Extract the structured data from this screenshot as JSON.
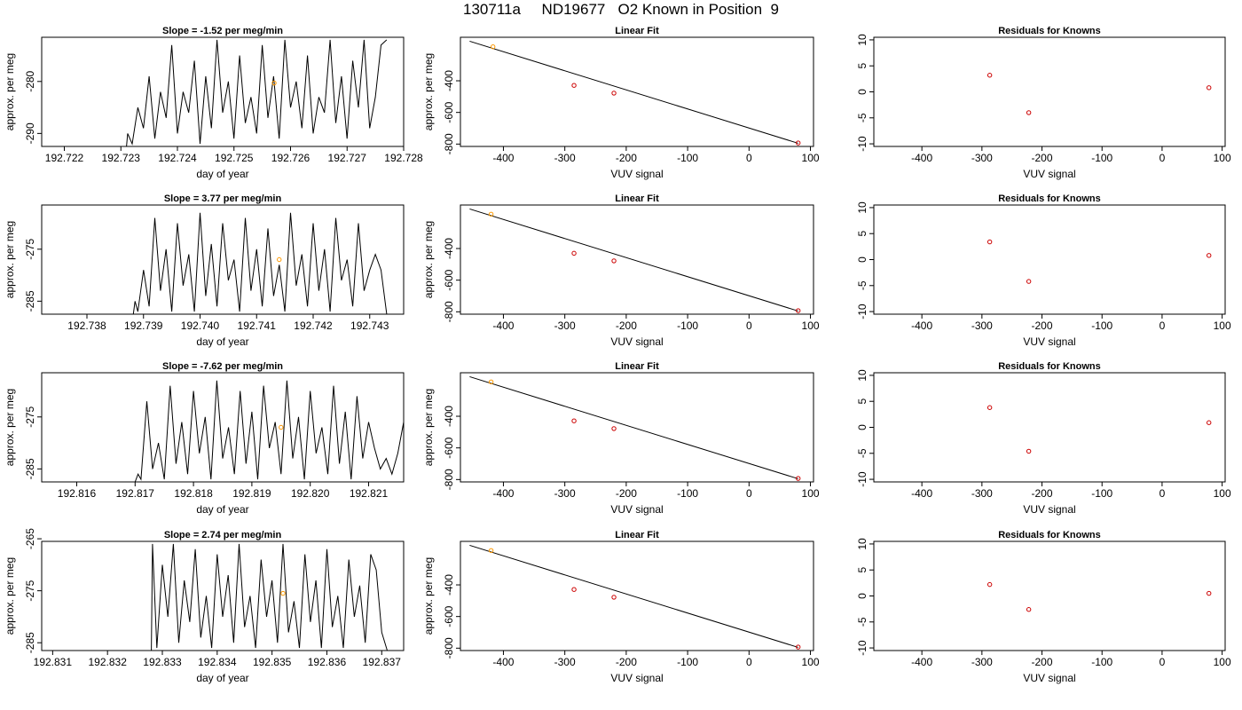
{
  "title": "130711a     ND19677   O2 Known in Position  9",
  "colors": {
    "line": "#000000",
    "known_point": "#cc0000",
    "unknown_point": "#ff9900"
  },
  "chart_data": [
    {
      "type": "line",
      "title": "Slope =  -1.52  per meg/min",
      "xlabel": "day of year",
      "ylabel": "approx. per meg",
      "xlim": [
        192.7216,
        192.728
      ],
      "ylim": [
        -292.5,
        -271.5
      ],
      "xticks": [
        "192.722",
        "192.723",
        "192.724",
        "192.725",
        "192.726",
        "192.727",
        "192.728"
      ],
      "yticks": [
        "-280",
        "-290"
      ],
      "marker": {
        "x": 192.72571,
        "y": -280.3
      },
      "series": [
        {
          "x": [
            192.7216,
            192.7231,
            192.72312,
            192.7232,
            192.7233,
            192.7234,
            192.7235,
            192.7236,
            192.7237,
            192.7238,
            192.7239,
            192.724,
            192.7241,
            192.7242,
            192.7243,
            192.7244,
            192.7245,
            192.7246,
            192.7247,
            192.7248,
            192.7249,
            192.725,
            192.7251,
            192.7252,
            192.7253,
            192.7254,
            192.7255,
            192.7256,
            192.7257,
            192.7258,
            192.7259,
            192.726,
            192.7261,
            192.7262,
            192.7263,
            192.7264,
            192.7265,
            192.7266,
            192.7267,
            192.7268,
            192.7269,
            192.727,
            192.7271,
            192.7272,
            192.7273,
            192.7274,
            192.7275,
            192.7276,
            192.7277
          ],
          "y": [
            -292.5,
            -292.5,
            -290,
            -292,
            -285,
            -289,
            -279,
            -291,
            -282,
            -287,
            -273,
            -290,
            -282,
            -286,
            -276,
            -292,
            -279,
            -289,
            -272,
            -286,
            -280,
            -291,
            -275,
            -288,
            -283,
            -290,
            -273,
            -287,
            -279,
            -291,
            -272,
            -285,
            -280,
            -289,
            -275,
            -290,
            -283,
            -286,
            -272,
            -288,
            -279,
            -291,
            -276,
            -285,
            -272,
            -289,
            -283,
            -273,
            -272
          ]
        }
      ]
    },
    {
      "type": "scatter",
      "title": "Linear Fit",
      "xlabel": "VUV signal",
      "ylabel": "approx. per meg",
      "xlim": [
        -470,
        105
      ],
      "ylim": [
        -815,
        -125
      ],
      "xticks": [
        "-400",
        "-300",
        "-200",
        "-100",
        "0",
        "100"
      ],
      "yticks": [
        "-400",
        "-600",
        "-800"
      ],
      "fit_line": {
        "x": [
          -455,
          80
        ],
        "y": [
          -150,
          -795
        ]
      },
      "knowns": {
        "x": [
          -285,
          -220,
          80
        ],
        "y": [
          -429,
          -478,
          -793
        ]
      },
      "unknown": {
        "x": -417,
        "y": -185
      }
    },
    {
      "type": "scatter",
      "title": "Residuals for Knowns",
      "xlabel": "VUV signal",
      "ylabel": "",
      "xlim": [
        -480,
        105
      ],
      "ylim": [
        -10.5,
        10.5
      ],
      "xticks": [
        "-400",
        "-300",
        "-200",
        "-100",
        "0",
        "100"
      ],
      "yticks": [
        "10",
        "5",
        "0",
        "-5",
        "-10"
      ],
      "knowns": {
        "x": [
          -287,
          -222,
          78
        ],
        "y": [
          3.2,
          -4.0,
          0.8
        ]
      }
    },
    {
      "type": "line",
      "title": "Slope =  3.77  per meg/min",
      "xlabel": "day of year",
      "ylabel": "approx. per meg",
      "xlim": [
        192.7372,
        192.7436
      ],
      "ylim": [
        -287.5,
        -266.5
      ],
      "xticks": [
        "192.738",
        "192.739",
        "192.740",
        "192.741",
        "192.742",
        "192.743"
      ],
      "yticks": [
        "-275",
        "-285"
      ],
      "marker": {
        "x": 192.7414,
        "y": -277
      },
      "series": [
        {
          "x": [
            192.7372,
            192.73882,
            192.73885,
            192.7389,
            192.739,
            192.7391,
            192.7392,
            192.7393,
            192.7394,
            192.7395,
            192.7396,
            192.7397,
            192.7398,
            192.7399,
            192.74,
            192.7401,
            192.7402,
            192.7403,
            192.7404,
            192.7405,
            192.7406,
            192.7407,
            192.7408,
            192.7409,
            192.741,
            192.7411,
            192.7412,
            192.7413,
            192.7414,
            192.7415,
            192.7416,
            192.7417,
            192.7418,
            192.7419,
            192.742,
            192.7421,
            192.7422,
            192.7423,
            192.7424,
            192.7425,
            192.7426,
            192.7427,
            192.7428,
            192.7429,
            192.743,
            192.7431,
            192.7432,
            192.7433
          ],
          "y": [
            -287.5,
            -287.5,
            -285,
            -287,
            -279,
            -286,
            -269,
            -283,
            -275,
            -287,
            -270,
            -282,
            -276,
            -287,
            -268,
            -284,
            -274,
            -286,
            -270,
            -281,
            -277,
            -287,
            -269,
            -283,
            -275,
            -286,
            -271,
            -284,
            -278,
            -287,
            -268,
            -282,
            -276,
            -286,
            -270,
            -283,
            -275,
            -287,
            -269,
            -281,
            -277,
            -286,
            -270,
            -283,
            -279,
            -276,
            -279,
            -287.5
          ]
        }
      ]
    },
    {
      "type": "scatter",
      "title": "Linear Fit",
      "xlabel": "VUV signal",
      "ylabel": "approx. per meg",
      "xlim": [
        -470,
        105
      ],
      "ylim": [
        -815,
        -125
      ],
      "xticks": [
        "-400",
        "-300",
        "-200",
        "-100",
        "0",
        "100"
      ],
      "yticks": [
        "-400",
        "-600",
        "-800"
      ],
      "fit_line": {
        "x": [
          -455,
          80
        ],
        "y": [
          -150,
          -795
        ]
      },
      "knowns": {
        "x": [
          -285,
          -220,
          80
        ],
        "y": [
          -430,
          -478,
          -793
        ]
      },
      "unknown": {
        "x": -420,
        "y": -183
      }
    },
    {
      "type": "scatter",
      "title": "Residuals for Knowns",
      "xlabel": "VUV signal",
      "ylabel": "",
      "xlim": [
        -480,
        105
      ],
      "ylim": [
        -10.5,
        10.5
      ],
      "xticks": [
        "-400",
        "-300",
        "-200",
        "-100",
        "0",
        "100"
      ],
      "yticks": [
        "10",
        "5",
        "0",
        "-5",
        "-10"
      ],
      "knowns": {
        "x": [
          -287,
          -222,
          78
        ],
        "y": [
          3.4,
          -4.2,
          0.8
        ]
      }
    },
    {
      "type": "line",
      "title": "Slope =  -7.62  per meg/min",
      "xlabel": "day of year",
      "ylabel": "approx. per meg",
      "xlim": [
        192.8154,
        192.8216
      ],
      "ylim": [
        -287.5,
        -266.5
      ],
      "xticks": [
        "192.816",
        "192.817",
        "192.818",
        "192.819",
        "192.820",
        "192.821"
      ],
      "yticks": [
        "-275",
        "-285"
      ],
      "marker": {
        "x": 192.8195,
        "y": -277
      },
      "series": [
        {
          "x": [
            192.8154,
            192.817,
            192.81705,
            192.8171,
            192.8172,
            192.8173,
            192.8174,
            192.8175,
            192.8176,
            192.8177,
            192.8178,
            192.8179,
            192.818,
            192.8181,
            192.8182,
            192.8183,
            192.8184,
            192.8185,
            192.8186,
            192.8187,
            192.8188,
            192.8189,
            192.819,
            192.8191,
            192.8192,
            192.8193,
            192.8194,
            192.8195,
            192.8196,
            192.8197,
            192.8198,
            192.8199,
            192.82,
            192.8201,
            192.8202,
            192.8203,
            192.8204,
            192.8205,
            192.8206,
            192.8207,
            192.8208,
            192.8209,
            192.821,
            192.8211,
            192.8212,
            192.8213,
            192.8214,
            192.8215,
            192.8216
          ],
          "y": [
            -287.5,
            -287.5,
            -286,
            -287,
            -272,
            -285,
            -280,
            -287,
            -269,
            -284,
            -276,
            -286,
            -270,
            -282,
            -275,
            -287,
            -268,
            -283,
            -277,
            -286,
            -270,
            -284,
            -274,
            -287,
            -269,
            -281,
            -276,
            -286,
            -268,
            -283,
            -275,
            -287,
            -270,
            -282,
            -277,
            -286,
            -269,
            -284,
            -274,
            -287,
            -271,
            -283,
            -276,
            -281,
            -285,
            -283,
            -286,
            -282,
            -276
          ]
        }
      ]
    },
    {
      "type": "scatter",
      "title": "Linear Fit",
      "xlabel": "VUV signal",
      "ylabel": "approx. per meg",
      "xlim": [
        -470,
        105
      ],
      "ylim": [
        -815,
        -125
      ],
      "xticks": [
        "-400",
        "-300",
        "-200",
        "-100",
        "0",
        "100"
      ],
      "yticks": [
        "-400",
        "-600",
        "-800"
      ],
      "fit_line": {
        "x": [
          -455,
          80
        ],
        "y": [
          -150,
          -795
        ]
      },
      "knowns": {
        "x": [
          -285,
          -220,
          80
        ],
        "y": [
          -429,
          -478,
          -793
        ]
      },
      "unknown": {
        "x": -420,
        "y": -183
      }
    },
    {
      "type": "scatter",
      "title": "Residuals for Knowns",
      "xlabel": "VUV signal",
      "ylabel": "",
      "xlim": [
        -480,
        105
      ],
      "ylim": [
        -10.5,
        10.5
      ],
      "xticks": [
        "-400",
        "-300",
        "-200",
        "-100",
        "0",
        "100"
      ],
      "yticks": [
        "10",
        "5",
        "0",
        "-5",
        "-10"
      ],
      "knowns": {
        "x": [
          -287,
          -222,
          78
        ],
        "y": [
          3.8,
          -4.6,
          0.9
        ]
      }
    },
    {
      "type": "line",
      "title": "Slope =  2.74  per meg/min",
      "xlabel": "day of year",
      "ylabel": "approx. per meg",
      "xlim": [
        192.8308,
        192.8374
      ],
      "ylim": [
        -286.5,
        -265.5
      ],
      "xticks": [
        "192.831",
        "192.832",
        "192.833",
        "192.834",
        "192.835",
        "192.836",
        "192.837"
      ],
      "yticks": [
        "-265",
        "-275",
        "-285"
      ],
      "marker": {
        "x": 192.8352,
        "y": -275.5
      },
      "series": [
        {
          "x": [
            192.8308,
            192.8328,
            192.83282,
            192.8329,
            192.833,
            192.8331,
            192.8332,
            192.8333,
            192.8334,
            192.8335,
            192.8336,
            192.8337,
            192.8338,
            192.8339,
            192.834,
            192.8341,
            192.8342,
            192.8343,
            192.8344,
            192.8345,
            192.8346,
            192.8347,
            192.8348,
            192.8349,
            192.835,
            192.8351,
            192.8352,
            192.8353,
            192.8354,
            192.8355,
            192.8356,
            192.8357,
            192.8358,
            192.8359,
            192.836,
            192.8361,
            192.8362,
            192.8363,
            192.8364,
            192.8365,
            192.8366,
            192.8367,
            192.8368,
            192.8369,
            192.837,
            192.8371
          ],
          "y": [
            -286.5,
            -286.5,
            -266,
            -286,
            -270,
            -280,
            -266,
            -285,
            -273,
            -281,
            -267,
            -284,
            -276,
            -286,
            -268,
            -280,
            -272,
            -285,
            -266,
            -282,
            -276,
            -286,
            -269,
            -280,
            -273,
            -285,
            -266,
            -283,
            -277,
            -286,
            -268,
            -281,
            -273,
            -286,
            -267,
            -282,
            -276,
            -286,
            -269,
            -280,
            -274,
            -285,
            -268,
            -271,
            -283,
            -286.5
          ]
        }
      ]
    },
    {
      "type": "scatter",
      "title": "Linear Fit",
      "xlabel": "VUV signal",
      "ylabel": "approx. per meg",
      "xlim": [
        -470,
        105
      ],
      "ylim": [
        -815,
        -125
      ],
      "xticks": [
        "-400",
        "-300",
        "-200",
        "-100",
        "0",
        "100"
      ],
      "yticks": [
        "-400",
        "-600",
        "-800"
      ],
      "fit_line": {
        "x": [
          -455,
          80
        ],
        "y": [
          -150,
          -795
        ]
      },
      "knowns": {
        "x": [
          -285,
          -220,
          80
        ],
        "y": [
          -429,
          -478,
          -793
        ]
      },
      "unknown": {
        "x": -420,
        "y": -183
      }
    },
    {
      "type": "scatter",
      "title": "Residuals for Knowns",
      "xlabel": "VUV signal",
      "ylabel": "",
      "xlim": [
        -480,
        105
      ],
      "ylim": [
        -10.5,
        10.5
      ],
      "xticks": [
        "-400",
        "-300",
        "-200",
        "-100",
        "0",
        "100"
      ],
      "yticks": [
        "10",
        "5",
        "0",
        "-5",
        "-10"
      ],
      "knowns": {
        "x": [
          -287,
          -222,
          78
        ],
        "y": [
          2.2,
          -2.6,
          0.5
        ]
      }
    }
  ]
}
